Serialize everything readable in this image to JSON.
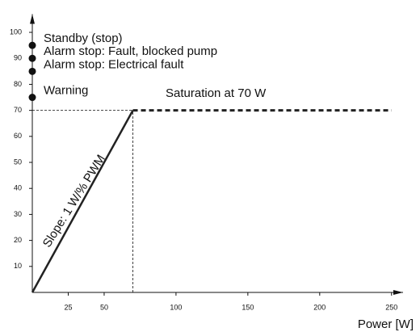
{
  "chart_data": {
    "type": "line",
    "x_label": "Power [W]",
    "series": [
      {
        "color": "#222222",
        "style": "solid",
        "x": [
          0,
          70
        ],
        "values": [
          0,
          70
        ]
      },
      {
        "color": "#222222",
        "style": "dashed",
        "x": [
          70,
          250
        ],
        "values": [
          70,
          70
        ]
      }
    ],
    "points": [
      {
        "x": 0,
        "y": 95,
        "label": "Standby (stop)"
      },
      {
        "x": 0,
        "y": 90,
        "label": "Alarm stop: Fault, blocked pump"
      },
      {
        "x": 0,
        "y": 85,
        "label": "Alarm stop: Electrical fault"
      },
      {
        "x": 0,
        "y": 75,
        "label": "Warning"
      }
    ],
    "annotations": [
      "Saturation at 70 W",
      "Slope: 1 W/% PWM"
    ],
    "xlim": [
      0,
      258
    ],
    "ylim": [
      0,
      107
    ],
    "xticks": [
      25,
      50,
      100,
      150,
      200,
      250
    ],
    "yticks": [
      10,
      20,
      30,
      40,
      50,
      60,
      70,
      80,
      90,
      100
    ]
  }
}
